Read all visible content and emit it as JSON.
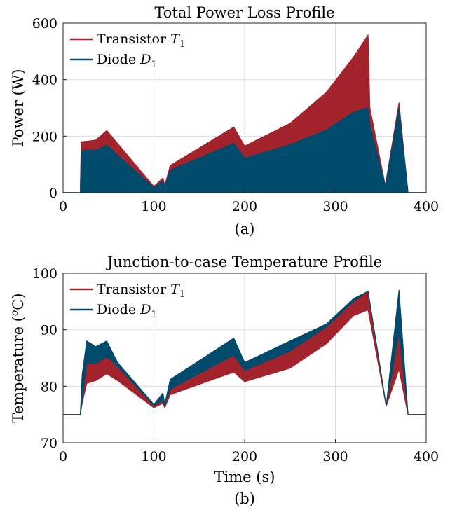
{
  "colors": {
    "transistor": "#a3232d",
    "diode": "#004b6b",
    "grid": "#dedede"
  },
  "chart_data": [
    {
      "type": "area",
      "title": "Total Power Loss Profile",
      "xlabel": "",
      "ylabel": "Power (W)",
      "caption": "(a)",
      "xlim": [
        0,
        400
      ],
      "ylim": [
        0,
        600
      ],
      "xticks": [
        "0",
        "100",
        "200",
        "300",
        "400"
      ],
      "yticks": [
        "0",
        "200",
        "400",
        "600"
      ],
      "grid": true,
      "legend_position": "top-left",
      "series": [
        {
          "name": "Transistor T1",
          "name_main": "Transistor ",
          "name_var": "T",
          "name_sub": "1",
          "x": [
            0,
            19,
            20,
            26,
            36,
            48,
            100,
            110,
            112,
            118,
            120,
            188,
            200,
            250,
            290,
            320,
            336,
            338,
            355,
            370,
            380,
            400
          ],
          "y": [
            0,
            0,
            180,
            182,
            186,
            220,
            22,
            52,
            26,
            95,
            100,
            232,
            165,
            245,
            355,
            480,
            558,
            300,
            25,
            318,
            0,
            0
          ]
        },
        {
          "name": "Diode D1",
          "name_main": "Diode ",
          "name_var": "D",
          "name_sub": "1",
          "x": [
            0,
            19,
            20,
            26,
            36,
            48,
            100,
            110,
            112,
            118,
            120,
            188,
            200,
            250,
            290,
            320,
            336,
            338,
            355,
            370,
            380,
            400
          ],
          "y": [
            0,
            0,
            148,
            150,
            150,
            168,
            18,
            42,
            22,
            78,
            82,
            175,
            122,
            170,
            222,
            285,
            300,
            240,
            22,
            300,
            0,
            0
          ]
        }
      ]
    },
    {
      "type": "area",
      "title": "Junction-to-case Temperature Profile",
      "xlabel": "Time (s)",
      "ylabel": "Temperature (°C)",
      "ylabel_main": "Temperature (",
      "ylabel_sup": "o",
      "ylabel_end": "C)",
      "caption": "(b)",
      "xlim": [
        0,
        400
      ],
      "ylim": [
        70,
        100
      ],
      "xticks": [
        "0",
        "100",
        "200",
        "300",
        "400"
      ],
      "yticks": [
        "70",
        "80",
        "90",
        "100"
      ],
      "grid": true,
      "legend_position": "top-left",
      "series": [
        {
          "name": "Transistor T1",
          "name_main": "Transistor ",
          "name_var": "T",
          "name_sub": "1",
          "x": [
            0,
            19,
            21,
            26,
            36,
            48,
            60,
            100,
            110,
            112,
            118,
            188,
            200,
            250,
            290,
            320,
            336,
            356,
            370,
            380,
            400
          ],
          "y_low": [
            75,
            75,
            77,
            80.5,
            81,
            82.2,
            81,
            76.2,
            77,
            76.2,
            78.5,
            82.5,
            80.8,
            83.2,
            87.5,
            92.5,
            93.5,
            76.5,
            83,
            75,
            75
          ],
          "y_high": [
            75,
            75,
            80,
            84,
            84,
            85.2,
            83.5,
            76.6,
            77.5,
            76.6,
            79.5,
            85.5,
            82.8,
            86.2,
            90.5,
            95.0,
            96.8,
            76.5,
            89.5,
            75,
            75
          ]
        },
        {
          "name": "Diode D1",
          "name_main": "Diode ",
          "name_var": "D",
          "name_sub": "1",
          "x": [
            0,
            19,
            21,
            26,
            36,
            48,
            60,
            100,
            110,
            112,
            118,
            188,
            200,
            250,
            290,
            320,
            336,
            356,
            370,
            380,
            400
          ],
          "y_low": [
            75,
            75,
            77.5,
            84,
            84,
            85.2,
            83.5,
            76.6,
            77.5,
            76.6,
            79.5,
            85.5,
            82.8,
            86.2,
            90.5,
            95.0,
            96.8,
            76.5,
            89.5,
            75,
            75
          ],
          "y_high": [
            75,
            75,
            82,
            88,
            87,
            88,
            84.2,
            76.8,
            78.8,
            76.8,
            81.2,
            88.5,
            84.2,
            88,
            91,
            95.5,
            96.8,
            76.5,
            97,
            75,
            75
          ]
        }
      ]
    }
  ]
}
